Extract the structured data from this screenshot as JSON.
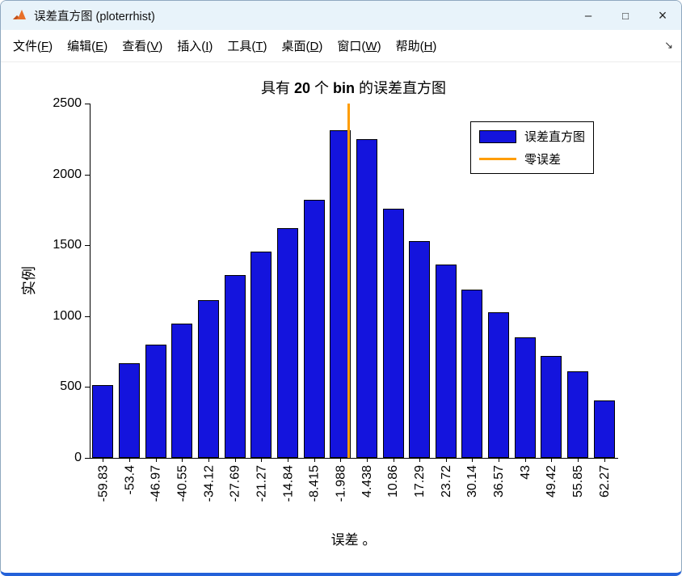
{
  "window": {
    "title": "误差直方图 (ploterrhist)",
    "controls": [
      {
        "id": "minimize",
        "glyph": "–"
      },
      {
        "id": "maximize",
        "glyph": "□"
      },
      {
        "id": "close",
        "glyph": "×"
      }
    ]
  },
  "menu": {
    "items": [
      {
        "pre": "文件(",
        "key": "F",
        "post": ")"
      },
      {
        "pre": "编辑(",
        "key": "E",
        "post": ")"
      },
      {
        "pre": "查看(",
        "key": "V",
        "post": ")"
      },
      {
        "pre": "插入(",
        "key": "I",
        "post": ")"
      },
      {
        "pre": "工具(",
        "key": "T",
        "post": ")"
      },
      {
        "pre": "桌面(",
        "key": "D",
        "post": ")"
      },
      {
        "pre": "窗口(",
        "key": "W",
        "post": ")"
      },
      {
        "pre": "帮助(",
        "key": "H",
        "post": ")"
      }
    ],
    "dock_arrow": "↘"
  },
  "chart_data": {
    "type": "bar",
    "title": "具有 20 个 bin 的误差直方图",
    "title_parts": [
      {
        "text": "具有 ",
        "bold": false
      },
      {
        "text": "20",
        "bold": true
      },
      {
        "text": " 个 ",
        "bold": false
      },
      {
        "text": "bin",
        "bold": true
      },
      {
        "text": " 的误差直方图",
        "bold": false
      }
    ],
    "xlabel": "误差 。",
    "ylabel": "实例",
    "categories": [
      "-59.83",
      "-53.4",
      "-46.97",
      "-40.55",
      "-34.12",
      "-27.69",
      "-21.27",
      "-14.84",
      "-8.415",
      "-1.988",
      "4.438",
      "10.86",
      "17.29",
      "23.72",
      "30.14",
      "36.57",
      "43",
      "49.42",
      "55.85",
      "62.27"
    ],
    "bin_centers": [
      -59.83,
      -53.4,
      -46.97,
      -40.55,
      -34.12,
      -27.69,
      -21.27,
      -14.84,
      -8.415,
      -1.988,
      4.438,
      10.86,
      17.29,
      23.72,
      30.14,
      36.57,
      43,
      49.42,
      55.85,
      62.27
    ],
    "values": [
      515,
      670,
      800,
      950,
      1115,
      1290,
      1455,
      1620,
      1820,
      2310,
      2250,
      1760,
      1530,
      1365,
      1190,
      1030,
      850,
      720,
      610,
      405
    ],
    "ylim": [
      0,
      2500
    ],
    "yticks": [
      0,
      500,
      1000,
      1500,
      2000,
      2500
    ],
    "xlim": [
      -63.04,
      65.48
    ],
    "zero_line_x": 0,
    "grid": false,
    "legend_position": "top-right",
    "colors": {
      "bar_fill": "#1414dd",
      "bar_edge": "#000000",
      "zero_line": "#ff9d00",
      "axis": "#000000"
    },
    "legend": {
      "items": [
        {
          "label": "误差直方图",
          "swatch": "patch"
        },
        {
          "label": "零误差",
          "swatch": "line"
        }
      ]
    }
  }
}
